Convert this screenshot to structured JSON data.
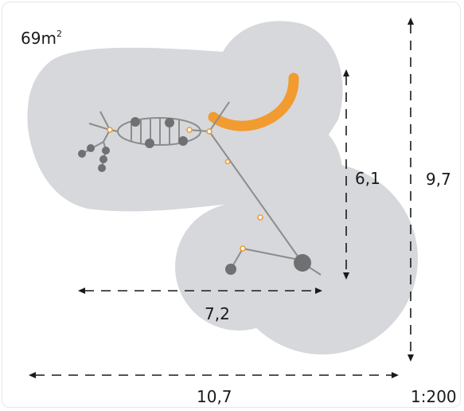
{
  "area": {
    "value": "69m",
    "superscript": "2"
  },
  "dimensions": {
    "height_inner": "6,1",
    "height_total": "9,7",
    "width_inner": "7,2",
    "width_total": "10,7"
  },
  "scale": "1:200",
  "colors": {
    "safety_zone": "#d6d8db",
    "structure": "#8c8c8c",
    "nodes": "#6f7072",
    "accent": "#f29b30",
    "dimension_lines": "#1a1a1a"
  }
}
